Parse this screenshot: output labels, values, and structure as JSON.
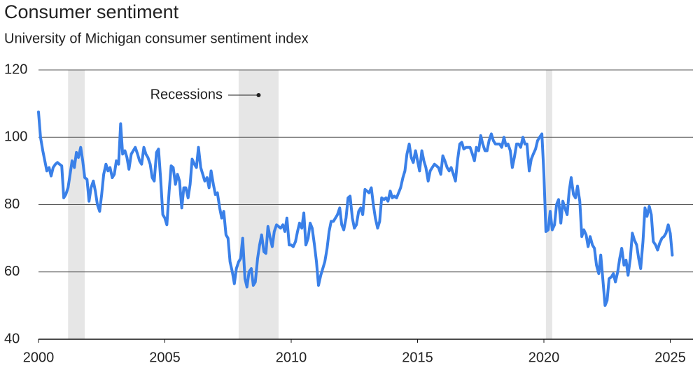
{
  "chart_data": {
    "type": "line",
    "title": "Consumer sentiment",
    "subtitle": "University of Michigan consumer sentiment index",
    "annotation": "Recessions",
    "color": "#3a80e8",
    "recession_color": "#e6e6e6",
    "recessions": [
      [
        2001.17,
        2001.83
      ],
      [
        2007.92,
        2009.5
      ],
      [
        2020.08,
        2020.33
      ]
    ],
    "xlim": [
      2000,
      2025.9
    ],
    "xticks": [
      2000,
      2005,
      2010,
      2015,
      2020,
      2025
    ],
    "ylim": [
      40,
      120
    ],
    "yticks": [
      40,
      60,
      80,
      100,
      120
    ],
    "grid": true,
    "x": [
      2000,
      2000.08,
      2000.17,
      2000.25,
      2000.33,
      2000.42,
      2000.5,
      2000.58,
      2000.67,
      2000.75,
      2000.83,
      2000.92,
      2001,
      2001.08,
      2001.17,
      2001.25,
      2001.33,
      2001.42,
      2001.5,
      2001.58,
      2001.67,
      2001.75,
      2001.83,
      2001.92,
      2002,
      2002.08,
      2002.17,
      2002.25,
      2002.33,
      2002.42,
      2002.5,
      2002.58,
      2002.67,
      2002.75,
      2002.83,
      2002.92,
      2003,
      2003.08,
      2003.17,
      2003.25,
      2003.33,
      2003.42,
      2003.5,
      2003.58,
      2003.67,
      2003.75,
      2003.83,
      2003.92,
      2004,
      2004.08,
      2004.17,
      2004.25,
      2004.33,
      2004.42,
      2004.5,
      2004.58,
      2004.67,
      2004.75,
      2004.83,
      2004.92,
      2005,
      2005.08,
      2005.17,
      2005.25,
      2005.33,
      2005.42,
      2005.5,
      2005.58,
      2005.67,
      2005.75,
      2005.83,
      2005.92,
      2006,
      2006.08,
      2006.17,
      2006.25,
      2006.33,
      2006.42,
      2006.5,
      2006.58,
      2006.67,
      2006.75,
      2006.83,
      2006.92,
      2007,
      2007.08,
      2007.17,
      2007.25,
      2007.33,
      2007.42,
      2007.5,
      2007.58,
      2007.67,
      2007.75,
      2007.83,
      2007.92,
      2008,
      2008.08,
      2008.17,
      2008.25,
      2008.33,
      2008.42,
      2008.5,
      2008.58,
      2008.67,
      2008.75,
      2008.83,
      2008.92,
      2009,
      2009.08,
      2009.17,
      2009.25,
      2009.33,
      2009.42,
      2009.5,
      2009.58,
      2009.67,
      2009.75,
      2009.83,
      2009.92,
      2010,
      2010.08,
      2010.17,
      2010.25,
      2010.33,
      2010.42,
      2010.5,
      2010.58,
      2010.67,
      2010.75,
      2010.83,
      2010.92,
      2011,
      2011.08,
      2011.17,
      2011.25,
      2011.33,
      2011.42,
      2011.5,
      2011.58,
      2011.67,
      2011.75,
      2011.83,
      2011.92,
      2012,
      2012.08,
      2012.17,
      2012.25,
      2012.33,
      2012.42,
      2012.5,
      2012.58,
      2012.67,
      2012.75,
      2012.83,
      2012.92,
      2013,
      2013.08,
      2013.17,
      2013.25,
      2013.33,
      2013.42,
      2013.5,
      2013.58,
      2013.67,
      2013.75,
      2013.83,
      2013.92,
      2014,
      2014.08,
      2014.17,
      2014.25,
      2014.33,
      2014.42,
      2014.5,
      2014.58,
      2014.67,
      2014.75,
      2014.83,
      2014.92,
      2015,
      2015.08,
      2015.17,
      2015.25,
      2015.33,
      2015.42,
      2015.5,
      2015.58,
      2015.67,
      2015.75,
      2015.83,
      2015.92,
      2016,
      2016.08,
      2016.17,
      2016.25,
      2016.33,
      2016.42,
      2016.5,
      2016.58,
      2016.67,
      2016.75,
      2016.83,
      2016.92,
      2017,
      2017.08,
      2017.17,
      2017.25,
      2017.33,
      2017.42,
      2017.5,
      2017.58,
      2017.67,
      2017.75,
      2017.83,
      2017.92,
      2018,
      2018.08,
      2018.17,
      2018.25,
      2018.33,
      2018.42,
      2018.5,
      2018.58,
      2018.67,
      2018.75,
      2018.83,
      2018.92,
      2019,
      2019.08,
      2019.17,
      2019.25,
      2019.33,
      2019.42,
      2019.5,
      2019.58,
      2019.67,
      2019.75,
      2019.83,
      2019.92,
      2020,
      2020.08,
      2020.17,
      2020.25,
      2020.33,
      2020.42,
      2020.5,
      2020.58,
      2020.67,
      2020.75,
      2020.83,
      2020.92,
      2021,
      2021.08,
      2021.17,
      2021.25,
      2021.33,
      2021.42,
      2021.5,
      2021.58,
      2021.67,
      2021.75,
      2021.83,
      2021.92,
      2022,
      2022.08,
      2022.17,
      2022.25,
      2022.33,
      2022.42,
      2022.5,
      2022.58,
      2022.67,
      2022.75,
      2022.83,
      2022.92,
      2023,
      2023.08,
      2023.17,
      2023.25,
      2023.33,
      2023.42,
      2023.5,
      2023.58,
      2023.67,
      2023.75,
      2023.83,
      2023.92,
      2024,
      2024.08,
      2024.17,
      2024.25,
      2024.33,
      2024.42,
      2024.5,
      2024.58,
      2024.67,
      2024.75,
      2024.83,
      2024.92,
      2025,
      2025.08
    ],
    "values": [
      107.5,
      100,
      96,
      93,
      90,
      91,
      88.5,
      91,
      92,
      92.5,
      92,
      91.5,
      82,
      83,
      85,
      89,
      93,
      91,
      95.5,
      94,
      97,
      93,
      88,
      87.5,
      81,
      85,
      87,
      84,
      80,
      78,
      83,
      89,
      92,
      90,
      91,
      88,
      89,
      93,
      92,
      104,
      95,
      96,
      94,
      90.5,
      95,
      96,
      97,
      95,
      93,
      92,
      97,
      95,
      94,
      92,
      88,
      87,
      95.5,
      96.5,
      88,
      77,
      76,
      74,
      84,
      91.5,
      91,
      86,
      89,
      87,
      79,
      85,
      85,
      82,
      86,
      93.5,
      92,
      91,
      97,
      91,
      89,
      87,
      88,
      85,
      90,
      86,
      83,
      83.5,
      79,
      76,
      78,
      71,
      70,
      63,
      60,
      56.5,
      61,
      63,
      64,
      70,
      58,
      55.5,
      60,
      61,
      56,
      57,
      64,
      68,
      71,
      66,
      65.5,
      73.5,
      70,
      67.5,
      72,
      74,
      73.5,
      73,
      74,
      72,
      76,
      68,
      68,
      67.5,
      69,
      72,
      74.5,
      73,
      77.5,
      68,
      70,
      74.5,
      73,
      68,
      63,
      56,
      59,
      61,
      63,
      67,
      72,
      75,
      75,
      76,
      77,
      79,
      74,
      72.5,
      76,
      82,
      82.5,
      76,
      73,
      74,
      78,
      79,
      77,
      84.5,
      84,
      83.5,
      85,
      80,
      76,
      73,
      75,
      82,
      81.5,
      82,
      81,
      84,
      82,
      82.5,
      82,
      83.5,
      85,
      88,
      90,
      95,
      98,
      94,
      92.5,
      96,
      93,
      90,
      96,
      93,
      91,
      87,
      90,
      91,
      92,
      91.5,
      91,
      89,
      94.5,
      93,
      91,
      90,
      91,
      89,
      87,
      93,
      98,
      98.5,
      96.5,
      97,
      97,
      97,
      95,
      93,
      97,
      96,
      100.5,
      98,
      96,
      96,
      99,
      101,
      99,
      98,
      98,
      98,
      97,
      100,
      97.5,
      98,
      96,
      91,
      94,
      98,
      98,
      97,
      100,
      98,
      98,
      90,
      93.5,
      95,
      96.5,
      99,
      100,
      101,
      89,
      72,
      72.5,
      78,
      72.5,
      74,
      80,
      81.5,
      74.5,
      81,
      79,
      77,
      84,
      88,
      83,
      82,
      85.5,
      81,
      70.5,
      72.5,
      71,
      67.5,
      70.5,
      68,
      67,
      62,
      59.5,
      65,
      58,
      50,
      51.5,
      58,
      58.5,
      59.5,
      57,
      60,
      64,
      67,
      62,
      63.5,
      59,
      64,
      71.5,
      69.5,
      68,
      64,
      61,
      69,
      79,
      76.5,
      79.5,
      77,
      69,
      68,
      66.5,
      68.5,
      70,
      70.5,
      71.5,
      74,
      71.5,
      65
    ]
  }
}
